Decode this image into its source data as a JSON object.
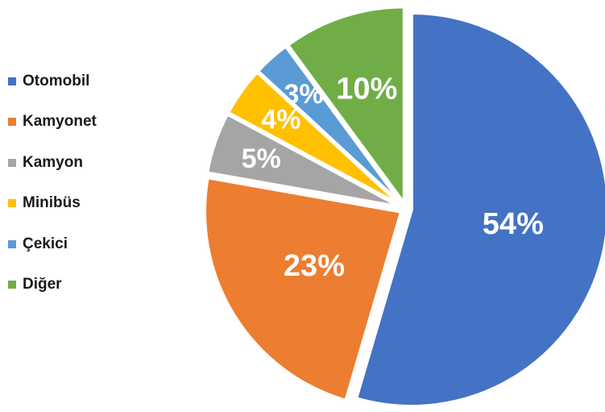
{
  "chart_data": {
    "type": "pie",
    "title": "",
    "legend_position": "left",
    "slices": [
      {
        "label": "Otomobil",
        "value": 54,
        "display": "54%",
        "color": "#4472C4"
      },
      {
        "label": "Kamyonet",
        "value": 23,
        "display": "23%",
        "color": "#ED7D31"
      },
      {
        "label": "Kamyon",
        "value": 5,
        "display": "5%",
        "color": "#A5A5A5"
      },
      {
        "label": "Minibüs",
        "value": 4,
        "display": "4%",
        "color": "#FFC000"
      },
      {
        "label": "Çekici",
        "value": 3,
        "display": "3%",
        "color": "#5B9BD5"
      },
      {
        "label": "Diğer",
        "value": 10,
        "display": "10%",
        "color": "#70AD47"
      }
    ]
  }
}
